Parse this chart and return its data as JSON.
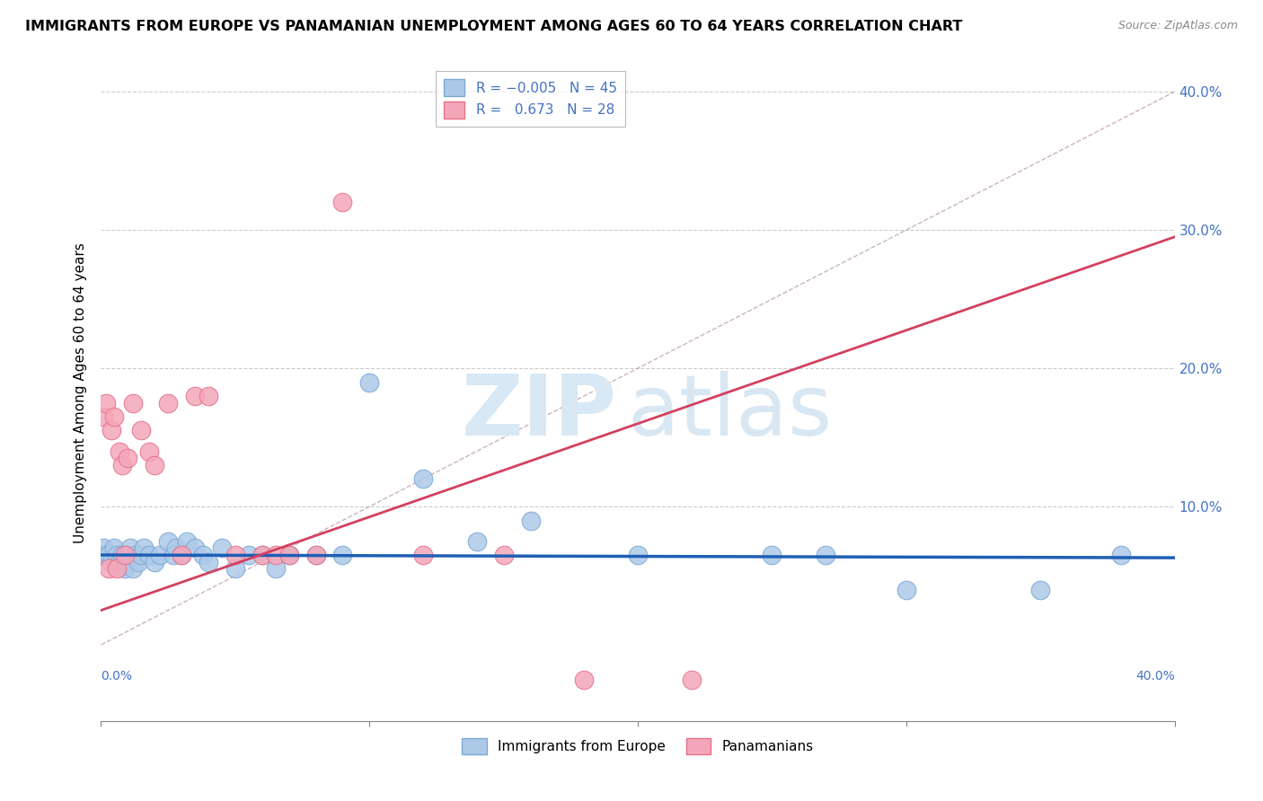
{
  "title": "IMMIGRANTS FROM EUROPE VS PANAMANIAN UNEMPLOYMENT AMONG AGES 60 TO 64 YEARS CORRELATION CHART",
  "source": "Source: ZipAtlas.com",
  "ylabel": "Unemployment Among Ages 60 to 64 years",
  "yticks": [
    0.0,
    0.1,
    0.2,
    0.3,
    0.4
  ],
  "ytick_labels": [
    "",
    "10.0%",
    "20.0%",
    "30.0%",
    "40.0%"
  ],
  "xrange": [
    0.0,
    0.4
  ],
  "yrange": [
    -0.055,
    0.42
  ],
  "legend_blue_label": "R = -0.005  N = 45",
  "legend_pink_label": "R =  0.673  N = 28",
  "legend_bottom_blue": "Immigrants from Europe",
  "legend_bottom_pink": "Panamanians",
  "blue_color": "#adc9e8",
  "pink_color": "#f4a7b9",
  "blue_edge_color": "#7ba8d4",
  "pink_edge_color": "#e8708a",
  "blue_line_color": "#1f5fb5",
  "pink_line_color": "#d44060",
  "diag_line_color": "#c0a0b0",
  "blue_scatter_x": [
    0.001,
    0.002,
    0.003,
    0.004,
    0.005,
    0.006,
    0.007,
    0.008,
    0.009,
    0.01,
    0.011,
    0.012,
    0.013,
    0.014,
    0.015,
    0.016,
    0.018,
    0.02,
    0.022,
    0.025,
    0.027,
    0.028,
    0.03,
    0.032,
    0.035,
    0.038,
    0.04,
    0.045,
    0.05,
    0.055,
    0.06,
    0.065,
    0.07,
    0.08,
    0.09,
    0.1,
    0.12,
    0.14,
    0.16,
    0.2,
    0.25,
    0.27,
    0.3,
    0.35,
    0.38
  ],
  "blue_scatter_y": [
    0.07,
    0.065,
    0.065,
    0.06,
    0.07,
    0.065,
    0.06,
    0.065,
    0.055,
    0.065,
    0.07,
    0.055,
    0.065,
    0.06,
    0.065,
    0.07,
    0.065,
    0.06,
    0.065,
    0.075,
    0.065,
    0.07,
    0.065,
    0.075,
    0.07,
    0.065,
    0.06,
    0.07,
    0.055,
    0.065,
    0.065,
    0.055,
    0.065,
    0.065,
    0.065,
    0.19,
    0.12,
    0.075,
    0.09,
    0.065,
    0.065,
    0.065,
    0.04,
    0.04,
    0.065
  ],
  "pink_scatter_x": [
    0.001,
    0.002,
    0.003,
    0.004,
    0.005,
    0.006,
    0.007,
    0.008,
    0.009,
    0.01,
    0.012,
    0.015,
    0.018,
    0.02,
    0.025,
    0.03,
    0.035,
    0.04,
    0.05,
    0.06,
    0.065,
    0.07,
    0.08,
    0.09,
    0.12,
    0.15,
    0.18,
    0.22
  ],
  "pink_scatter_y": [
    0.165,
    0.175,
    0.055,
    0.155,
    0.165,
    0.055,
    0.14,
    0.13,
    0.065,
    0.135,
    0.175,
    0.155,
    0.14,
    0.13,
    0.175,
    0.065,
    0.18,
    0.18,
    0.065,
    0.065,
    0.065,
    0.065,
    0.065,
    0.32,
    0.065,
    0.065,
    -0.025,
    -0.025
  ],
  "blue_line_x": [
    0.0,
    0.4
  ],
  "blue_line_y": [
    0.065,
    0.063
  ],
  "pink_line_x": [
    0.0,
    0.4
  ],
  "pink_line_y": [
    0.025,
    0.295
  ],
  "diag_line_x": [
    0.0,
    0.4
  ],
  "diag_line_y": [
    0.0,
    0.4
  ]
}
